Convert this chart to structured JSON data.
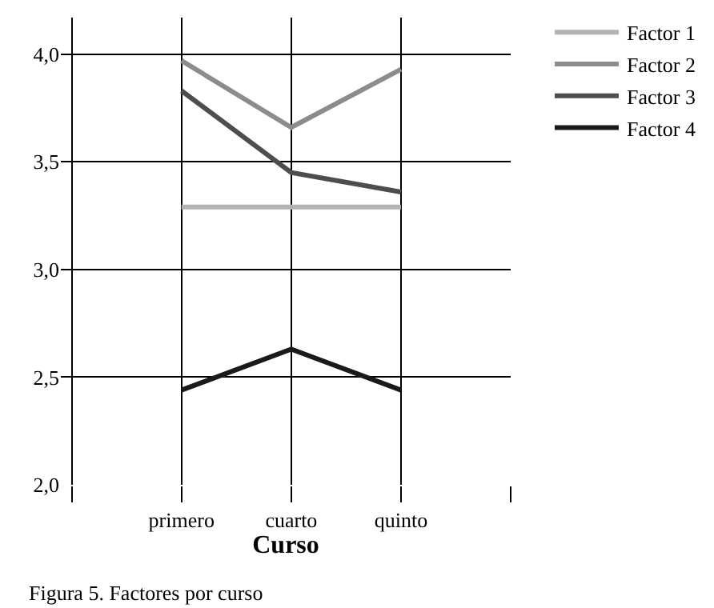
{
  "chart_data": {
    "type": "line",
    "xlabel": "Curso",
    "categories": [
      null,
      "primero",
      "cuarto",
      "quinto",
      null
    ],
    "series": [
      {
        "name": "Factor 1",
        "color": "#b3b3b3",
        "values": [
          null,
          3.29,
          3.29,
          3.29,
          null
        ]
      },
      {
        "name": "Factor 2",
        "color": "#8c8c8c",
        "values": [
          null,
          3.97,
          3.66,
          3.93,
          null
        ]
      },
      {
        "name": "Factor 3",
        "color": "#4d4d4d",
        "values": [
          null,
          3.83,
          3.45,
          3.36,
          null
        ]
      },
      {
        "name": "Factor 4",
        "color": "#1a1a1a",
        "values": [
          null,
          2.44,
          2.63,
          2.44,
          null
        ]
      }
    ],
    "ylim": [
      2,
      4.17
    ],
    "yticks": [
      {
        "value": 2,
        "label": "2,0"
      },
      {
        "value": 2.5,
        "label": "2,5"
      },
      {
        "value": 3,
        "label": "3,0"
      },
      {
        "value": 3.5,
        "label": "3,5"
      },
      {
        "value": 4,
        "label": "4,0"
      }
    ],
    "grid": true,
    "legend": "top right",
    "marker": "none",
    "line_style": "solid",
    "annotations": [
      "Figura 5. Factores por curso"
    ]
  }
}
